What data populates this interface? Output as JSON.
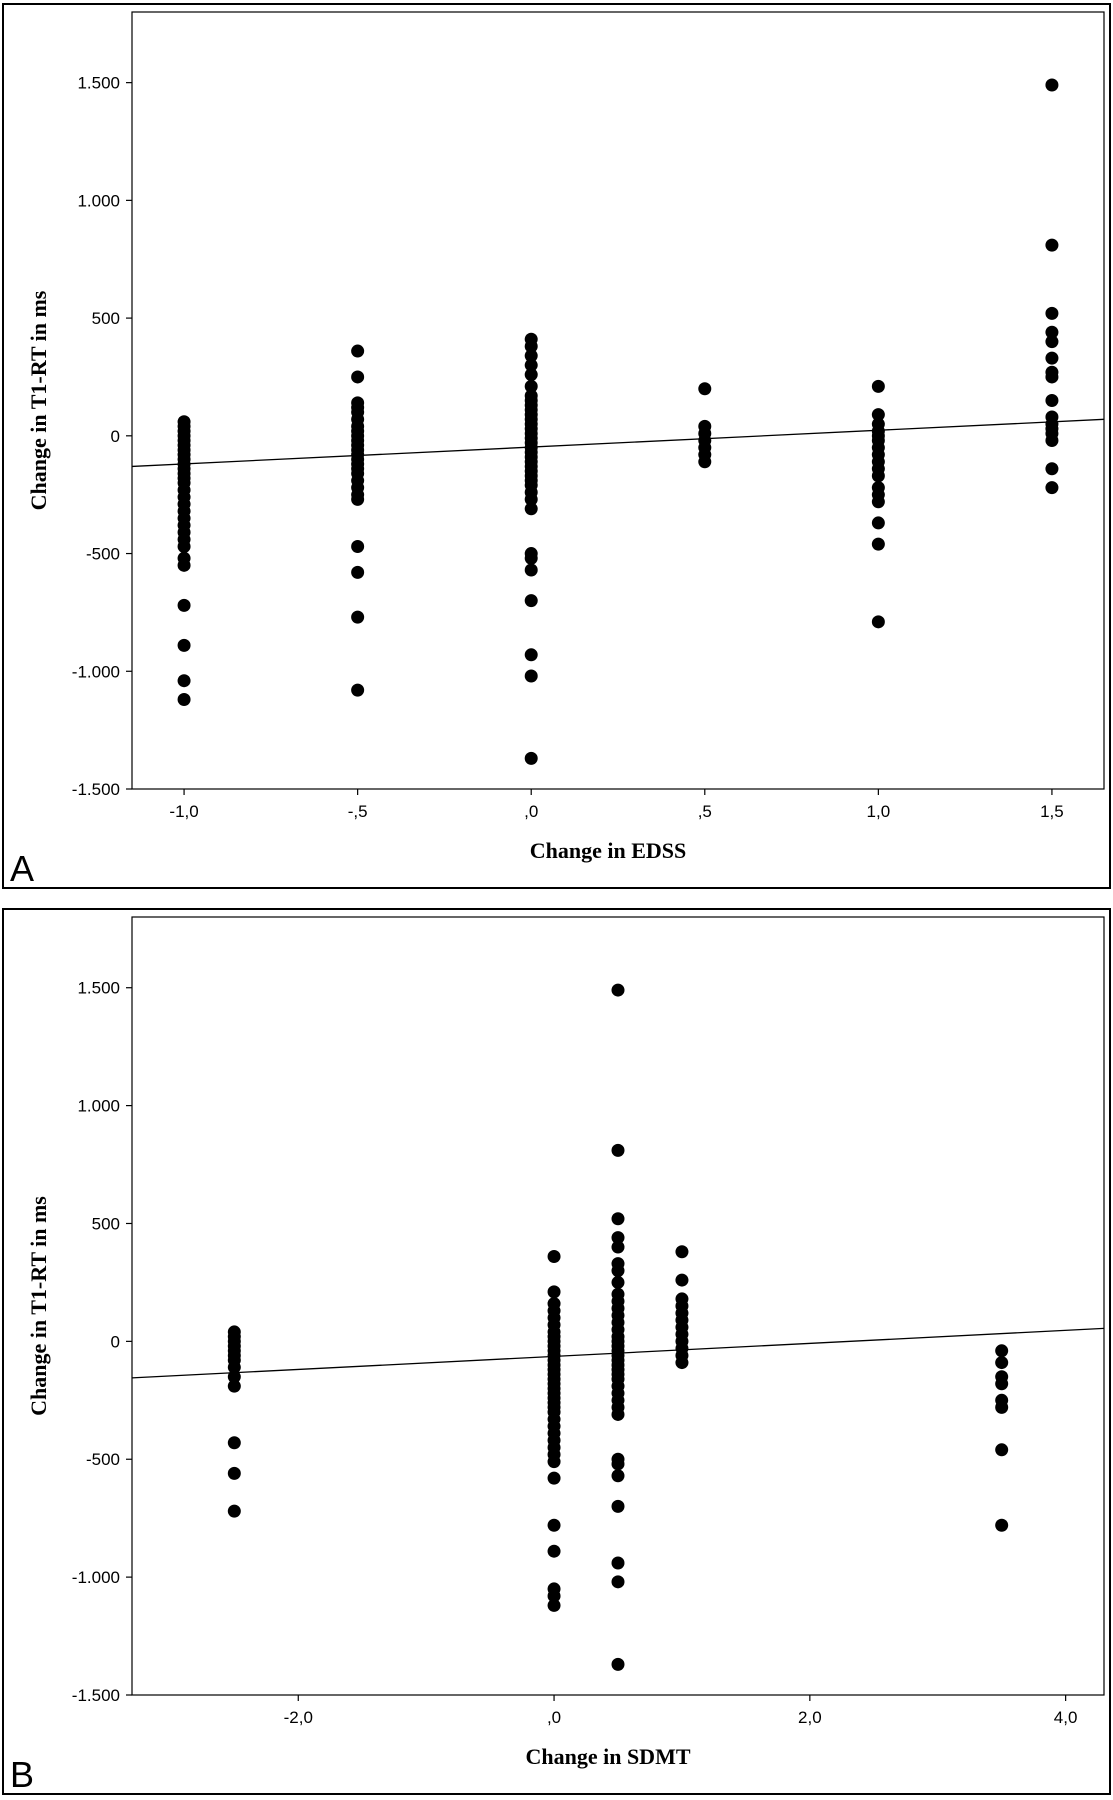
{
  "chart_data": [
    {
      "type": "scatter",
      "panel_label": "A",
      "title": "",
      "xlabel": "Change in EDSS",
      "ylabel": "Change in T1-RT in ms",
      "xlim": [
        -1.15,
        1.65
      ],
      "ylim": [
        -1500,
        1800
      ],
      "x_ticks": [
        -1.0,
        -0.5,
        0.0,
        0.5,
        1.0,
        1.5
      ],
      "x_tick_labels": [
        "-1,0",
        "-,5",
        ",0",
        ",5",
        "1,0",
        "1,5"
      ],
      "y_ticks": [
        -1500,
        -1000,
        -500,
        0,
        500,
        1000,
        1500
      ],
      "y_tick_labels": [
        "-1.500",
        "-1.000",
        "-500",
        "0",
        "500",
        "1.000",
        "1.500"
      ],
      "grid": false,
      "regression_line": {
        "x": [
          -1.15,
          1.65
        ],
        "y": [
          -130,
          70
        ]
      },
      "points": [
        {
          "x": -1.0,
          "y": 60
        },
        {
          "x": -1.0,
          "y": 40
        },
        {
          "x": -1.0,
          "y": 20
        },
        {
          "x": -1.0,
          "y": 0
        },
        {
          "x": -1.0,
          "y": -20
        },
        {
          "x": -1.0,
          "y": -40
        },
        {
          "x": -1.0,
          "y": -60
        },
        {
          "x": -1.0,
          "y": -80
        },
        {
          "x": -1.0,
          "y": -100
        },
        {
          "x": -1.0,
          "y": -120
        },
        {
          "x": -1.0,
          "y": -140
        },
        {
          "x": -1.0,
          "y": -160
        },
        {
          "x": -1.0,
          "y": -180
        },
        {
          "x": -1.0,
          "y": -200
        },
        {
          "x": -1.0,
          "y": -230
        },
        {
          "x": -1.0,
          "y": -260
        },
        {
          "x": -1.0,
          "y": -290
        },
        {
          "x": -1.0,
          "y": -320
        },
        {
          "x": -1.0,
          "y": -350
        },
        {
          "x": -1.0,
          "y": -380
        },
        {
          "x": -1.0,
          "y": -410
        },
        {
          "x": -1.0,
          "y": -440
        },
        {
          "x": -1.0,
          "y": -470
        },
        {
          "x": -1.0,
          "y": -520
        },
        {
          "x": -1.0,
          "y": -550
        },
        {
          "x": -1.0,
          "y": -720
        },
        {
          "x": -1.0,
          "y": -890
        },
        {
          "x": -1.0,
          "y": -1040
        },
        {
          "x": -1.0,
          "y": -1120
        },
        {
          "x": -0.5,
          "y": 360
        },
        {
          "x": -0.5,
          "y": 250
        },
        {
          "x": -0.5,
          "y": 140
        },
        {
          "x": -0.5,
          "y": 120
        },
        {
          "x": -0.5,
          "y": 100
        },
        {
          "x": -0.5,
          "y": 70
        },
        {
          "x": -0.5,
          "y": 40
        },
        {
          "x": -0.5,
          "y": 20
        },
        {
          "x": -0.5,
          "y": 0
        },
        {
          "x": -0.5,
          "y": -20
        },
        {
          "x": -0.5,
          "y": -40
        },
        {
          "x": -0.5,
          "y": -60
        },
        {
          "x": -0.5,
          "y": -80
        },
        {
          "x": -0.5,
          "y": -100
        },
        {
          "x": -0.5,
          "y": -120
        },
        {
          "x": -0.5,
          "y": -140
        },
        {
          "x": -0.5,
          "y": -160
        },
        {
          "x": -0.5,
          "y": -190
        },
        {
          "x": -0.5,
          "y": -220
        },
        {
          "x": -0.5,
          "y": -250
        },
        {
          "x": -0.5,
          "y": -270
        },
        {
          "x": -0.5,
          "y": -470
        },
        {
          "x": -0.5,
          "y": -580
        },
        {
          "x": -0.5,
          "y": -770
        },
        {
          "x": -0.5,
          "y": -1080
        },
        {
          "x": 0.0,
          "y": 410
        },
        {
          "x": 0.0,
          "y": 380
        },
        {
          "x": 0.0,
          "y": 340
        },
        {
          "x": 0.0,
          "y": 300
        },
        {
          "x": 0.0,
          "y": 260
        },
        {
          "x": 0.0,
          "y": 210
        },
        {
          "x": 0.0,
          "y": 170
        },
        {
          "x": 0.0,
          "y": 150
        },
        {
          "x": 0.0,
          "y": 130
        },
        {
          "x": 0.0,
          "y": 110
        },
        {
          "x": 0.0,
          "y": 90
        },
        {
          "x": 0.0,
          "y": 70
        },
        {
          "x": 0.0,
          "y": 50
        },
        {
          "x": 0.0,
          "y": 30
        },
        {
          "x": 0.0,
          "y": 10
        },
        {
          "x": 0.0,
          "y": -10
        },
        {
          "x": 0.0,
          "y": -30
        },
        {
          "x": 0.0,
          "y": -50
        },
        {
          "x": 0.0,
          "y": -70
        },
        {
          "x": 0.0,
          "y": -90
        },
        {
          "x": 0.0,
          "y": -110
        },
        {
          "x": 0.0,
          "y": -130
        },
        {
          "x": 0.0,
          "y": -150
        },
        {
          "x": 0.0,
          "y": -170
        },
        {
          "x": 0.0,
          "y": -190
        },
        {
          "x": 0.0,
          "y": -210
        },
        {
          "x": 0.0,
          "y": -240
        },
        {
          "x": 0.0,
          "y": -270
        },
        {
          "x": 0.0,
          "y": -310
        },
        {
          "x": 0.0,
          "y": -500
        },
        {
          "x": 0.0,
          "y": -520
        },
        {
          "x": 0.0,
          "y": -570
        },
        {
          "x": 0.0,
          "y": -700
        },
        {
          "x": 0.0,
          "y": -930
        },
        {
          "x": 0.0,
          "y": -1020
        },
        {
          "x": 0.0,
          "y": -1370
        },
        {
          "x": 0.5,
          "y": 200
        },
        {
          "x": 0.5,
          "y": 40
        },
        {
          "x": 0.5,
          "y": 10
        },
        {
          "x": 0.5,
          "y": -20
        },
        {
          "x": 0.5,
          "y": -50
        },
        {
          "x": 0.5,
          "y": -80
        },
        {
          "x": 0.5,
          "y": -110
        },
        {
          "x": 1.0,
          "y": 210
        },
        {
          "x": 1.0,
          "y": 90
        },
        {
          "x": 1.0,
          "y": 50
        },
        {
          "x": 1.0,
          "y": 20
        },
        {
          "x": 1.0,
          "y": 0
        },
        {
          "x": 1.0,
          "y": -20
        },
        {
          "x": 1.0,
          "y": -50
        },
        {
          "x": 1.0,
          "y": -80
        },
        {
          "x": 1.0,
          "y": -110
        },
        {
          "x": 1.0,
          "y": -140
        },
        {
          "x": 1.0,
          "y": -170
        },
        {
          "x": 1.0,
          "y": -220
        },
        {
          "x": 1.0,
          "y": -250
        },
        {
          "x": 1.0,
          "y": -280
        },
        {
          "x": 1.0,
          "y": -370
        },
        {
          "x": 1.0,
          "y": -460
        },
        {
          "x": 1.0,
          "y": -790
        },
        {
          "x": 1.5,
          "y": 1490
        },
        {
          "x": 1.5,
          "y": 810
        },
        {
          "x": 1.5,
          "y": 520
        },
        {
          "x": 1.5,
          "y": 440
        },
        {
          "x": 1.5,
          "y": 400
        },
        {
          "x": 1.5,
          "y": 330
        },
        {
          "x": 1.5,
          "y": 270
        },
        {
          "x": 1.5,
          "y": 250
        },
        {
          "x": 1.5,
          "y": 150
        },
        {
          "x": 1.5,
          "y": 80
        },
        {
          "x": 1.5,
          "y": 50
        },
        {
          "x": 1.5,
          "y": 30
        },
        {
          "x": 1.5,
          "y": 10
        },
        {
          "x": 1.5,
          "y": -20
        },
        {
          "x": 1.5,
          "y": -140
        },
        {
          "x": 1.5,
          "y": -220
        }
      ]
    },
    {
      "type": "scatter",
      "panel_label": "B",
      "title": "",
      "xlabel": "Change in SDMT",
      "ylabel": "Change in T1-RT in ms",
      "xlim": [
        -3.3,
        4.3
      ],
      "ylim": [
        -1500,
        1800
      ],
      "x_ticks": [
        -2.0,
        0.0,
        2.0,
        4.0
      ],
      "x_tick_labels": [
        "-2,0",
        ",0",
        "2,0",
        "4,0"
      ],
      "y_ticks": [
        -1500,
        -1000,
        -500,
        0,
        500,
        1000,
        1500
      ],
      "y_tick_labels": [
        "-1.500",
        "-1.000",
        "-500",
        "0",
        "500",
        "1.000",
        "1.500"
      ],
      "grid": false,
      "regression_line": {
        "x": [
          -3.3,
          4.3
        ],
        "y": [
          -155,
          55
        ]
      },
      "points": [
        {
          "x": -2.5,
          "y": 40
        },
        {
          "x": -2.5,
          "y": 20
        },
        {
          "x": -2.5,
          "y": 0
        },
        {
          "x": -2.5,
          "y": -20
        },
        {
          "x": -2.5,
          "y": -40
        },
        {
          "x": -2.5,
          "y": -60
        },
        {
          "x": -2.5,
          "y": -80
        },
        {
          "x": -2.5,
          "y": -110
        },
        {
          "x": -2.5,
          "y": -150
        },
        {
          "x": -2.5,
          "y": -190
        },
        {
          "x": -2.5,
          "y": -430
        },
        {
          "x": -2.5,
          "y": -560
        },
        {
          "x": -2.5,
          "y": -720
        },
        {
          "x": 0.0,
          "y": 360
        },
        {
          "x": 0.0,
          "y": 210
        },
        {
          "x": 0.0,
          "y": 160
        },
        {
          "x": 0.0,
          "y": 130
        },
        {
          "x": 0.0,
          "y": 100
        },
        {
          "x": 0.0,
          "y": 70
        },
        {
          "x": 0.0,
          "y": 40
        },
        {
          "x": 0.0,
          "y": 20
        },
        {
          "x": 0.0,
          "y": 0
        },
        {
          "x": 0.0,
          "y": -20
        },
        {
          "x": 0.0,
          "y": -40
        },
        {
          "x": 0.0,
          "y": -60
        },
        {
          "x": 0.0,
          "y": -80
        },
        {
          "x": 0.0,
          "y": -100
        },
        {
          "x": 0.0,
          "y": -120
        },
        {
          "x": 0.0,
          "y": -140
        },
        {
          "x": 0.0,
          "y": -160
        },
        {
          "x": 0.0,
          "y": -180
        },
        {
          "x": 0.0,
          "y": -200
        },
        {
          "x": 0.0,
          "y": -220
        },
        {
          "x": 0.0,
          "y": -240
        },
        {
          "x": 0.0,
          "y": -260
        },
        {
          "x": 0.0,
          "y": -280
        },
        {
          "x": 0.0,
          "y": -300
        },
        {
          "x": 0.0,
          "y": -330
        },
        {
          "x": 0.0,
          "y": -360
        },
        {
          "x": 0.0,
          "y": -390
        },
        {
          "x": 0.0,
          "y": -420
        },
        {
          "x": 0.0,
          "y": -450
        },
        {
          "x": 0.0,
          "y": -480
        },
        {
          "x": 0.0,
          "y": -510
        },
        {
          "x": 0.0,
          "y": -580
        },
        {
          "x": 0.0,
          "y": -780
        },
        {
          "x": 0.0,
          "y": -890
        },
        {
          "x": 0.0,
          "y": -1050
        },
        {
          "x": 0.0,
          "y": -1080
        },
        {
          "x": 0.0,
          "y": -1120
        },
        {
          "x": 0.5,
          "y": 1490
        },
        {
          "x": 0.5,
          "y": 810
        },
        {
          "x": 0.5,
          "y": 520
        },
        {
          "x": 0.5,
          "y": 440
        },
        {
          "x": 0.5,
          "y": 400
        },
        {
          "x": 0.5,
          "y": 330
        },
        {
          "x": 0.5,
          "y": 300
        },
        {
          "x": 0.5,
          "y": 250
        },
        {
          "x": 0.5,
          "y": 200
        },
        {
          "x": 0.5,
          "y": 170
        },
        {
          "x": 0.5,
          "y": 140
        },
        {
          "x": 0.5,
          "y": 110
        },
        {
          "x": 0.5,
          "y": 80
        },
        {
          "x": 0.5,
          "y": 50
        },
        {
          "x": 0.5,
          "y": 20
        },
        {
          "x": 0.5,
          "y": 0
        },
        {
          "x": 0.5,
          "y": -20
        },
        {
          "x": 0.5,
          "y": -40
        },
        {
          "x": 0.5,
          "y": -60
        },
        {
          "x": 0.5,
          "y": -80
        },
        {
          "x": 0.5,
          "y": -100
        },
        {
          "x": 0.5,
          "y": -120
        },
        {
          "x": 0.5,
          "y": -140
        },
        {
          "x": 0.5,
          "y": -160
        },
        {
          "x": 0.5,
          "y": -190
        },
        {
          "x": 0.5,
          "y": -220
        },
        {
          "x": 0.5,
          "y": -250
        },
        {
          "x": 0.5,
          "y": -280
        },
        {
          "x": 0.5,
          "y": -310
        },
        {
          "x": 0.5,
          "y": -500
        },
        {
          "x": 0.5,
          "y": -520
        },
        {
          "x": 0.5,
          "y": -570
        },
        {
          "x": 0.5,
          "y": -700
        },
        {
          "x": 0.5,
          "y": -940
        },
        {
          "x": 0.5,
          "y": -1020
        },
        {
          "x": 0.5,
          "y": -1370
        },
        {
          "x": 1.0,
          "y": 380
        },
        {
          "x": 1.0,
          "y": 260
        },
        {
          "x": 1.0,
          "y": 180
        },
        {
          "x": 1.0,
          "y": 150
        },
        {
          "x": 1.0,
          "y": 120
        },
        {
          "x": 1.0,
          "y": 90
        },
        {
          "x": 1.0,
          "y": 60
        },
        {
          "x": 1.0,
          "y": 30
        },
        {
          "x": 1.0,
          "y": 0
        },
        {
          "x": 1.0,
          "y": -30
        },
        {
          "x": 1.0,
          "y": -60
        },
        {
          "x": 1.0,
          "y": -90
        },
        {
          "x": 3.5,
          "y": -40
        },
        {
          "x": 3.5,
          "y": -90
        },
        {
          "x": 3.5,
          "y": -150
        },
        {
          "x": 3.5,
          "y": -180
        },
        {
          "x": 3.5,
          "y": -250
        },
        {
          "x": 3.5,
          "y": -280
        },
        {
          "x": 3.5,
          "y": -460
        },
        {
          "x": 3.5,
          "y": -780
        }
      ]
    }
  ]
}
